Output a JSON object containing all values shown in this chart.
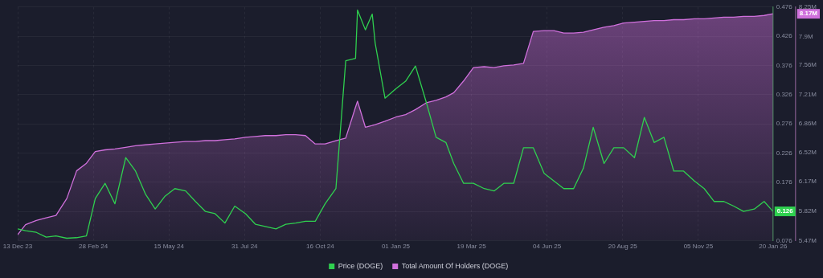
{
  "chart_data": {
    "type": "line",
    "x": [
      "2023-12-13",
      "2023-12-21",
      "2024-01-01",
      "2024-01-11",
      "2024-01-21",
      "2024-02-01",
      "2024-02-11",
      "2024-02-21",
      "2024-03-01",
      "2024-03-11",
      "2024-03-21",
      "2024-04-01",
      "2024-04-11",
      "2024-04-21",
      "2024-05-01",
      "2024-05-11",
      "2024-05-21",
      "2024-06-01",
      "2024-06-11",
      "2024-06-21",
      "2024-07-01",
      "2024-07-11",
      "2024-07-21",
      "2024-08-01",
      "2024-08-11",
      "2024-08-21",
      "2024-09-01",
      "2024-09-11",
      "2024-09-21",
      "2024-10-01",
      "2024-10-11",
      "2024-10-21",
      "2024-11-01",
      "2024-11-11",
      "2024-11-21",
      "2024-11-23",
      "2024-12-01",
      "2024-12-08",
      "2024-12-11",
      "2024-12-21",
      "2025-01-01",
      "2025-01-11",
      "2025-01-21",
      "2025-02-01",
      "2025-02-11",
      "2025-02-21",
      "2025-03-01",
      "2025-03-11",
      "2025-03-21",
      "2025-04-01",
      "2025-04-11",
      "2025-04-21",
      "2025-05-01",
      "2025-05-11",
      "2025-05-21",
      "2025-06-01",
      "2025-06-11",
      "2025-06-21",
      "2025-07-01",
      "2025-07-11",
      "2025-07-21",
      "2025-08-01",
      "2025-08-11",
      "2025-08-21",
      "2025-09-01",
      "2025-09-11",
      "2025-09-21",
      "2025-10-01",
      "2025-10-11",
      "2025-10-21",
      "2025-11-01",
      "2025-11-11",
      "2025-11-21",
      "2025-12-01",
      "2025-12-11",
      "2025-12-21",
      "2026-01-01",
      "2026-01-11",
      "2026-01-20"
    ],
    "series": [
      {
        "name": "Price (DOGE)",
        "color": "#2fd04f",
        "axis": "y",
        "values": [
          0.096,
          0.093,
          0.09,
          0.082,
          0.084,
          0.08,
          0.081,
          0.084,
          0.148,
          0.174,
          0.139,
          0.218,
          0.195,
          0.156,
          0.13,
          0.152,
          0.165,
          0.161,
          0.143,
          0.126,
          0.122,
          0.106,
          0.135,
          0.122,
          0.104,
          0.1,
          0.096,
          0.104,
          0.106,
          0.109,
          0.109,
          0.139,
          0.165,
          0.384,
          0.388,
          0.471,
          0.437,
          0.464,
          0.414,
          0.32,
          0.336,
          0.349,
          0.375,
          0.313,
          0.253,
          0.244,
          0.208,
          0.174,
          0.174,
          0.165,
          0.161,
          0.174,
          0.174,
          0.235,
          0.235,
          0.191,
          0.178,
          0.165,
          0.165,
          0.2,
          0.27,
          0.208,
          0.235,
          0.235,
          0.218,
          0.287,
          0.244,
          0.253,
          0.195,
          0.195,
          0.178,
          0.165,
          0.143,
          0.143,
          0.135,
          0.126,
          0.13,
          0.143,
          0.126
        ]
      },
      {
        "name": "Total Amount Of Holders (DOGE)",
        "color": "#d070dc",
        "type": "area",
        "axis": "y2",
        "values": [
          5.54,
          5.66,
          5.71,
          5.74,
          5.77,
          5.97,
          6.3,
          6.39,
          6.53,
          6.55,
          6.56,
          6.58,
          6.6,
          6.61,
          6.62,
          6.63,
          6.64,
          6.65,
          6.65,
          6.66,
          6.66,
          6.67,
          6.68,
          6.7,
          6.71,
          6.72,
          6.72,
          6.73,
          6.73,
          6.72,
          6.62,
          6.62,
          6.66,
          6.69,
          7.06,
          7.13,
          6.82,
          6.84,
          6.85,
          6.89,
          6.94,
          6.97,
          7.03,
          7.11,
          7.14,
          7.18,
          7.23,
          7.37,
          7.53,
          7.54,
          7.53,
          7.55,
          7.56,
          7.58,
          7.96,
          7.97,
          7.97,
          7.94,
          7.94,
          7.95,
          7.98,
          8.01,
          8.03,
          8.06,
          8.07,
          8.08,
          8.09,
          8.09,
          8.1,
          8.1,
          8.11,
          8.11,
          8.12,
          8.13,
          8.13,
          8.14,
          8.14,
          8.15,
          8.17
        ]
      }
    ],
    "xlim": [
      "2023-12-13",
      "2026-01-20"
    ],
    "xticks": [
      {
        "value": "2023-12-13",
        "label": "13 Dec 23"
      },
      {
        "value": "2024-02-28",
        "label": "28 Feb 24"
      },
      {
        "value": "2024-05-15",
        "label": "15 May 24"
      },
      {
        "value": "2024-07-31",
        "label": "31 Jul 24"
      },
      {
        "value": "2024-10-16",
        "label": "16 Oct 24"
      },
      {
        "value": "2025-01-01",
        "label": "01 Jan 25"
      },
      {
        "value": "2025-03-19",
        "label": "19 Mar 25"
      },
      {
        "value": "2025-06-04",
        "label": "04 Jun 25"
      },
      {
        "value": "2025-08-20",
        "label": "20 Aug 25"
      },
      {
        "value": "2025-11-05",
        "label": "05 Nov 25"
      },
      {
        "value": "2026-01-20",
        "label": "20 Jan 26"
      }
    ],
    "ylim": [
      0.076,
      0.476
    ],
    "yticks": [
      0.076,
      {
        "value": 0.126,
        "label": null
      },
      0.176,
      0.226,
      0.276,
      0.326,
      0.376,
      0.426,
      0.476
    ],
    "y2lim": [
      5.47,
      8.25
    ],
    "y2ticks": [
      {
        "value": 5.47,
        "label": "5.47M"
      },
      {
        "value": 5.82,
        "label": "5.82M"
      },
      {
        "value": 6.17,
        "label": "6.17M"
      },
      {
        "value": 6.52,
        "label": "6.52M"
      },
      {
        "value": 6.86,
        "label": "6.86M"
      },
      {
        "value": 7.21,
        "label": "7.21M"
      },
      {
        "value": 7.56,
        "label": "7.56M"
      },
      {
        "value": 7.9,
        "label": "7.9M"
      },
      {
        "value": 8.25,
        "label": "8.25M"
      }
    ],
    "annotations": [
      "0.126",
      "8.17M"
    ],
    "grid": true,
    "legend": "bottom",
    "marker": "none"
  }
}
